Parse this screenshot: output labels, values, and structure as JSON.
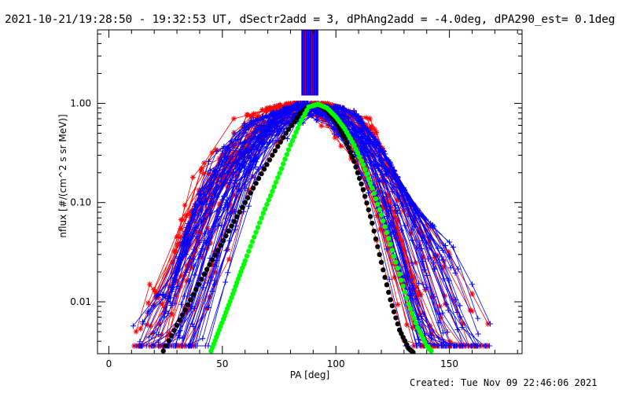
{
  "header": {
    "title": "2021-10-21/19:28:50 - 19:32:53 UT, dSectr2add = 3, dPhAng2add = -4.0deg, dPA290_est=  0.1deg"
  },
  "footer": {
    "created": "Created: Tue Nov 09 22:46:06 2021"
  },
  "colors": {
    "background": "#ffffff",
    "axes": "#000000",
    "series_red": "#ff0000",
    "series_blue": "#0000ff",
    "fit_black": "#000000",
    "fit_green": "#00ff00"
  },
  "chart_data": {
    "type": "line",
    "title": "2021-10-21/19:28:50 - 19:32:53 UT, dSectr2add = 3, dPhAng2add = -4.0deg, dPA290_est=  0.1deg",
    "xlabel": "PA [deg]",
    "ylabel": "nflux [#/(cm^2 s sr MeV)]",
    "xlim": [
      -5,
      182
    ],
    "ylim": [
      0.003,
      5.5
    ],
    "yscale": "log",
    "x_ticks": [
      0,
      50,
      100,
      150
    ],
    "x_tick_labels": [
      "0",
      "50",
      "100",
      "150"
    ],
    "y_ticks": [
      0.01,
      0.1,
      1.0
    ],
    "y_tick_labels": [
      "0.01",
      "0.10",
      "1.00"
    ],
    "grid": false,
    "legend": "none",
    "series": [
      {
        "color": "#ff0000",
        "marker": "asterisk",
        "style": "line+marker",
        "count": 40,
        "peak_pa": 88,
        "left_edge": [
          [
            12,
            0.005
          ],
          [
            18,
            0.015
          ],
          [
            25,
            0.008
          ],
          [
            30,
            0.045
          ],
          [
            37,
            0.18
          ],
          [
            42,
            0.25
          ],
          [
            55,
            0.7
          ],
          [
            76,
            0.92
          ],
          [
            85,
            1.0
          ]
        ],
        "right_edge": [
          [
            96,
            0.95
          ],
          [
            115,
            0.7
          ],
          [
            117,
            0.55
          ],
          [
            125,
            0.18
          ],
          [
            140,
            0.06
          ],
          [
            150,
            0.03
          ],
          [
            160,
            0.012
          ],
          [
            167,
            0.006
          ]
        ]
      },
      {
        "color": "#0000ff",
        "marker": "plus",
        "style": "line+marker",
        "count": 60,
        "peak_pa": 90,
        "left_edge": [
          [
            15,
            0.006
          ],
          [
            22,
            0.012
          ],
          [
            27,
            0.01
          ],
          [
            33,
            0.045
          ],
          [
            40,
            0.12
          ],
          [
            44,
            0.26
          ],
          [
            60,
            0.6
          ],
          [
            78,
            0.85
          ],
          [
            86,
            1.0
          ]
        ],
        "right_edge": [
          [
            101,
            0.88
          ],
          [
            108,
            0.8
          ],
          [
            120,
            0.35
          ],
          [
            135,
            0.08
          ],
          [
            150,
            0.04
          ],
          [
            160,
            0.015
          ],
          [
            168,
            0.006
          ]
        ]
      },
      {
        "name": "",
        "color": "#000000",
        "marker": "dot",
        "style": "dotted-fit",
        "x": [
          24,
          30,
          36,
          42,
          48,
          54,
          60,
          66,
          72,
          78,
          84,
          88,
          92,
          96,
          100,
          104,
          108,
          112,
          116,
          120,
          124,
          128,
          132,
          134
        ],
        "y": [
          0.0032,
          0.0058,
          0.0105,
          0.019,
          0.033,
          0.058,
          0.1,
          0.175,
          0.3,
          0.5,
          0.78,
          0.93,
          0.97,
          0.85,
          0.66,
          0.44,
          0.26,
          0.135,
          0.062,
          0.025,
          0.0105,
          0.0052,
          0.0034,
          0.0031
        ]
      },
      {
        "name": "",
        "color": "#00ff00",
        "marker": "dot",
        "style": "dotted-fit",
        "x": [
          45,
          48,
          51,
          54,
          57,
          60,
          64,
          68,
          72,
          76,
          80,
          84,
          88,
          92,
          96,
          100,
          104,
          108,
          112,
          116,
          120,
          124,
          128,
          132,
          136,
          140,
          142
        ],
        "y": [
          0.0032,
          0.0048,
          0.0072,
          0.011,
          0.017,
          0.026,
          0.045,
          0.078,
          0.13,
          0.22,
          0.38,
          0.62,
          0.92,
          0.98,
          0.9,
          0.73,
          0.55,
          0.38,
          0.24,
          0.14,
          0.075,
          0.038,
          0.019,
          0.0095,
          0.0055,
          0.0036,
          0.0032
        ]
      }
    ],
    "spike_region": {
      "pa_min": 85,
      "pa_max": 92,
      "y_from": 1.2,
      "y_to": 5.5
    }
  }
}
